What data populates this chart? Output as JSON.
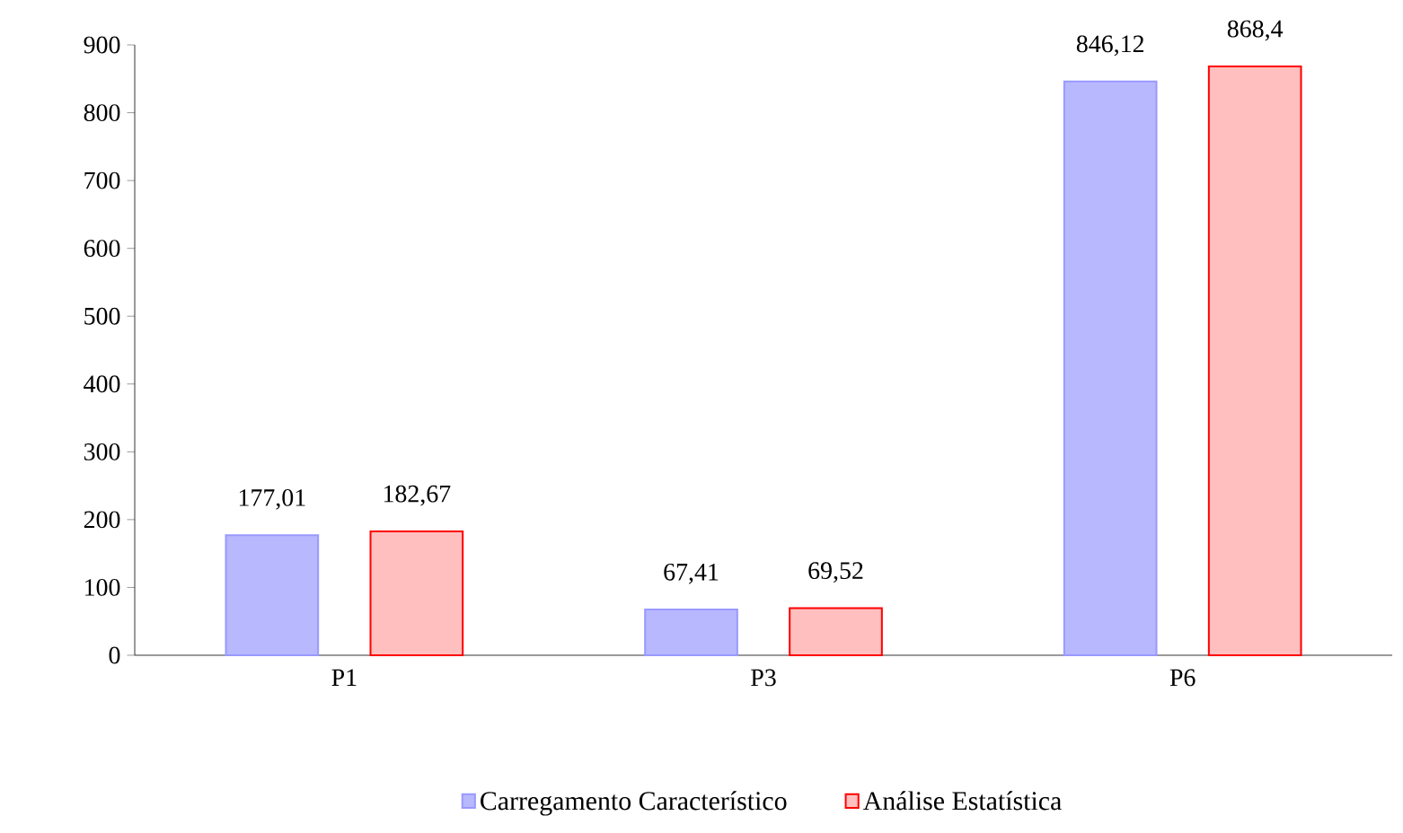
{
  "chart_data": {
    "type": "bar",
    "categories": [
      "P1",
      "P3",
      "P6"
    ],
    "series": [
      {
        "name": "Carregamento Característico",
        "color": "#9999ff",
        "values": [
          177.01,
          67.41,
          846.12
        ],
        "value_labels": [
          "177,01",
          "67,41",
          "846,12"
        ]
      },
      {
        "name": "Análise Estatística",
        "color": "#ff0000",
        "values": [
          182.67,
          69.52,
          868.4
        ],
        "value_labels": [
          "182,67",
          "69,52",
          "868,4"
        ]
      }
    ],
    "ylim": [
      0,
      900
    ],
    "yticks": [
      0,
      100,
      200,
      300,
      400,
      500,
      600,
      700,
      800,
      900
    ],
    "grid": false,
    "legend": "bottom"
  }
}
